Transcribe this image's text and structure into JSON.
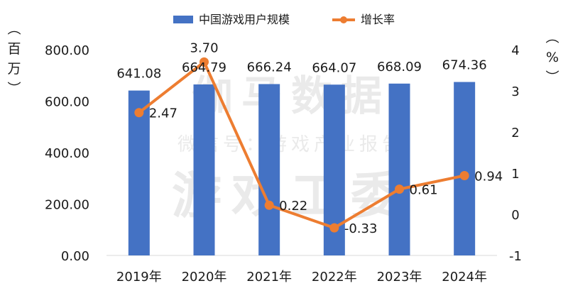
{
  "chart_data": {
    "type": "bar",
    "categories": [
      "2019年",
      "2020年",
      "2021年",
      "2022年",
      "2023年",
      "2024年"
    ],
    "series": [
      {
        "name": "中国游戏用户规模",
        "type": "bar",
        "axis": "left",
        "values": [
          641.08,
          664.79,
          666.24,
          664.07,
          668.09,
          674.36
        ]
      },
      {
        "name": "增长率",
        "type": "line",
        "axis": "right",
        "values": [
          2.47,
          3.7,
          0.22,
          -0.33,
          0.61,
          0.94
        ]
      }
    ],
    "y_left": {
      "unit_chars": [
        "（",
        "百",
        "万",
        "）"
      ],
      "ticks": [
        "0.00",
        "200.00",
        "400.00",
        "600.00",
        "800.00"
      ],
      "range": [
        0,
        800
      ]
    },
    "y_right": {
      "unit_chars": [
        "（",
        "%",
        "）"
      ],
      "ticks": [
        "-1",
        "0",
        "1",
        "2",
        "3",
        "4"
      ],
      "range": [
        -1,
        4
      ]
    },
    "legend_position": "top",
    "grid": false,
    "colors": {
      "bar": "#4472c4",
      "line": "#ed7d31",
      "text": "#1a1a1a"
    }
  },
  "watermark": {
    "line1": "伽马数据",
    "line2": "微信号：游戏产业报告",
    "line3": "游戏工委"
  }
}
